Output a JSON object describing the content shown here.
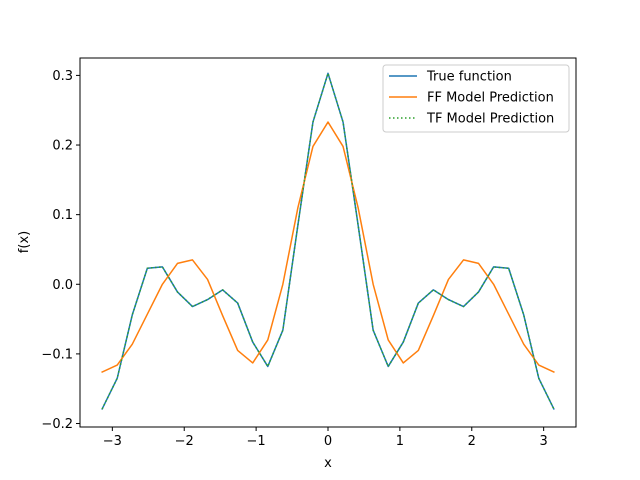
{
  "chart_data": {
    "type": "line",
    "title": "",
    "xlabel": "x",
    "ylabel": "f(x)",
    "xlim": [
      -3.45,
      3.45
    ],
    "ylim": [
      -0.205,
      0.325
    ],
    "xticks": [
      -3,
      -2,
      -1,
      0,
      1,
      2,
      3
    ],
    "xtick_labels": [
      "−3",
      "−2",
      "−1",
      "0",
      "1",
      "2",
      "3"
    ],
    "yticks": [
      -0.2,
      -0.1,
      0.0,
      0.1,
      0.2,
      0.3
    ],
    "ytick_labels": [
      "−0.2",
      "−0.1",
      "0.0",
      "0.1",
      "0.2",
      "0.3"
    ],
    "grid": false,
    "legend_position": "top-right",
    "x": [
      -3.1416,
      -2.9321,
      -2.7227,
      -2.5133,
      -2.3038,
      -2.0944,
      -1.885,
      -1.6755,
      -1.4661,
      -1.2566,
      -1.0472,
      -0.8378,
      -0.6283,
      -0.4189,
      -0.2094,
      0.0,
      0.2094,
      0.4189,
      0.6283,
      0.8378,
      1.0472,
      1.2566,
      1.4661,
      1.6755,
      1.885,
      2.0944,
      2.3038,
      2.5133,
      2.7227,
      2.9321,
      3.1416
    ],
    "series": [
      {
        "name": "True function",
        "color": "#1f77b4",
        "style": "solid",
        "values": [
          -0.179,
          -0.135,
          -0.044,
          0.023,
          0.025,
          -0.011,
          -0.032,
          -0.022,
          -0.008,
          -0.027,
          -0.083,
          -0.118,
          -0.066,
          0.085,
          0.233,
          0.303,
          0.233,
          0.085,
          -0.066,
          -0.118,
          -0.083,
          -0.027,
          -0.008,
          -0.022,
          -0.032,
          -0.011,
          0.025,
          0.023,
          -0.044,
          -0.135,
          -0.179
        ]
      },
      {
        "name": "FF Model Prediction",
        "color": "#ff7f0e",
        "style": "solid",
        "values": [
          -0.126,
          -0.116,
          -0.086,
          -0.043,
          0.0,
          0.03,
          0.035,
          0.007,
          -0.045,
          -0.095,
          -0.113,
          -0.08,
          0.0,
          0.11,
          0.198,
          0.233,
          0.198,
          0.11,
          0.0,
          -0.08,
          -0.113,
          -0.095,
          -0.045,
          0.007,
          0.035,
          0.03,
          0.0,
          -0.043,
          -0.086,
          -0.116,
          -0.126
        ]
      },
      {
        "name": "TF Model Prediction",
        "color": "#2ca02c",
        "style": "dotted",
        "values": [
          -0.179,
          -0.135,
          -0.044,
          0.023,
          0.025,
          -0.011,
          -0.032,
          -0.022,
          -0.008,
          -0.027,
          -0.083,
          -0.118,
          -0.066,
          0.085,
          0.233,
          0.303,
          0.233,
          0.085,
          -0.066,
          -0.118,
          -0.083,
          -0.027,
          -0.008,
          -0.022,
          -0.032,
          -0.011,
          0.025,
          0.023,
          -0.044,
          -0.135,
          -0.179
        ]
      }
    ]
  }
}
